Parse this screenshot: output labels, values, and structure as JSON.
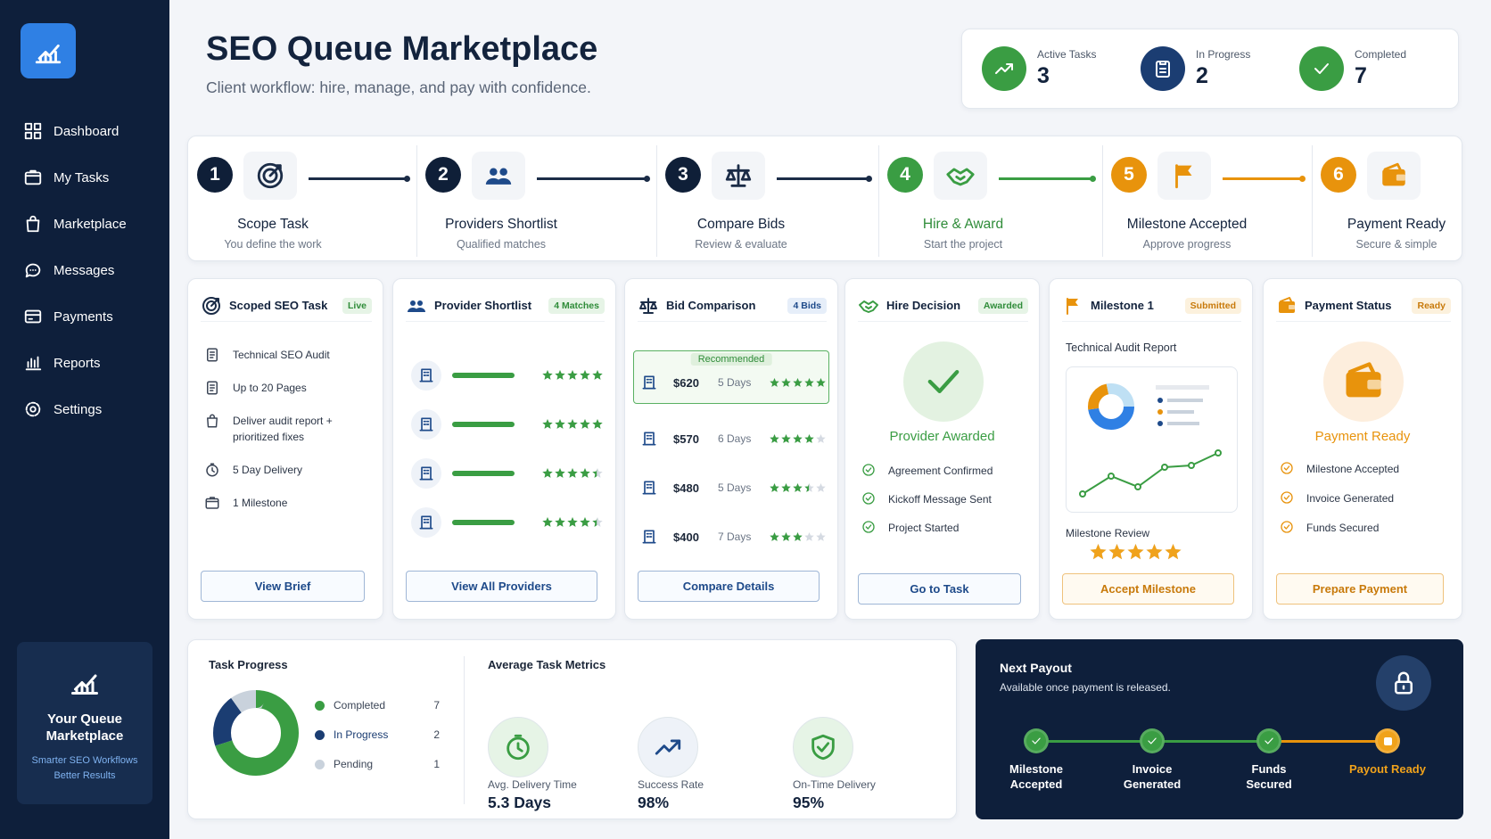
{
  "sidebar": {
    "nav": [
      "Dashboard",
      "My Tasks",
      "Marketplace",
      "Messages",
      "Payments",
      "Reports",
      "Settings"
    ],
    "promo": {
      "title": "Your Queue Marketplace",
      "lines": [
        "Smarter SEO Workflows",
        "Better Results"
      ]
    }
  },
  "header": {
    "title": "SEO Queue Marketplace",
    "subtitle": "Client workflow: hire, manage, and pay with confidence.",
    "stats": [
      {
        "label": "Active Tasks",
        "value": "3"
      },
      {
        "label": "In Progress",
        "value": "2"
      },
      {
        "label": "Completed",
        "value": "7"
      }
    ]
  },
  "steps": [
    {
      "number": "1",
      "title": "Scope Task",
      "caption": "You define the work"
    },
    {
      "number": "2",
      "title": "Providers Shortlist",
      "caption": "Qualified matches"
    },
    {
      "number": "3",
      "title": "Compare Bids",
      "caption": "Review & evaluate"
    },
    {
      "number": "4",
      "title": "Hire & Award",
      "caption": "Start the project"
    },
    {
      "number": "5",
      "title": "Milestone Accepted",
      "caption": "Approve progress"
    },
    {
      "number": "6",
      "title": "Payment Ready",
      "caption": "Secure & simple"
    }
  ],
  "cards": {
    "scope": {
      "title": "Scoped SEO Task",
      "badge": "Live",
      "items": [
        "Technical SEO Audit",
        "Up to 20 Pages",
        "Deliver audit report + prioritized fixes",
        "5 Day Delivery",
        "1 Milestone"
      ],
      "button": "View Brief"
    },
    "shortlist": {
      "title": "Provider Shortlist",
      "badge": "4 Matches",
      "ratings": [
        5,
        5,
        4.5,
        4.5
      ],
      "button": "View All Providers"
    },
    "bids": {
      "title": "Bid Comparison",
      "badge": "4 Bids",
      "tag": "Recommended",
      "bids": [
        {
          "price": "$620",
          "days": "5 Days",
          "rating": 5
        },
        {
          "price": "$570",
          "days": "6 Days",
          "rating": 4
        },
        {
          "price": "$480",
          "days": "5 Days",
          "rating": 3.5
        },
        {
          "price": "$400",
          "days": "7 Days",
          "rating": 3
        }
      ],
      "button": "Compare Details"
    },
    "hire": {
      "title": "Hire Decision",
      "badge": "Awarded",
      "status": "Provider Awarded",
      "items": [
        "Agreement Confirmed",
        "Kickoff Message Sent",
        "Project Started"
      ],
      "button": "Go to Task"
    },
    "milestone": {
      "title": "Milestone 1",
      "badge": "Submitted",
      "deliverable": "Technical Audit Report",
      "review_label": "Milestone Review",
      "rating": 5,
      "button": "Accept Milestone"
    },
    "payment": {
      "title": "Payment Status",
      "badge": "Ready",
      "status": "Payment Ready",
      "items": [
        "Milestone Accepted",
        "Invoice Generated",
        "Funds Secured"
      ],
      "button": "Prepare Payment"
    }
  },
  "progress": {
    "title": "Task Progress",
    "items": [
      {
        "label": "Completed",
        "value": 7,
        "color": "#3a9d43"
      },
      {
        "label": "In Progress",
        "value": 2,
        "color": "#1b3d72"
      },
      {
        "label": "Pending",
        "value": 1,
        "color": "#c9d2dc"
      }
    ]
  },
  "metrics": {
    "title": "Average Task Metrics",
    "items": [
      {
        "label": "Avg. Delivery Time",
        "value": "5.3 Days"
      },
      {
        "label": "Success Rate",
        "value": "98%"
      },
      {
        "label": "On-Time Delivery",
        "value": "95%"
      }
    ]
  },
  "payout": {
    "title": "Next Payout",
    "subtitle": "Available once payment is released.",
    "steps": [
      "Milestone Accepted",
      "Invoice Generated",
      "Funds Secured",
      "Payout Ready"
    ]
  }
}
